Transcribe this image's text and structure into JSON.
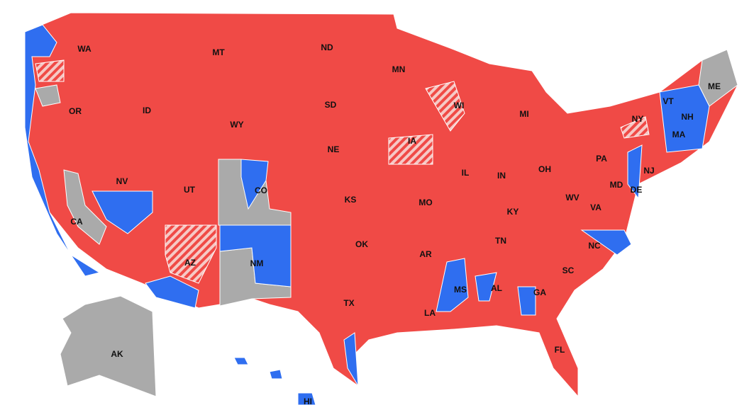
{
  "labels": [
    "WA",
    "MT",
    "ND",
    "MN",
    "OR",
    "ID",
    "SD",
    "WI",
    "MI",
    "WY",
    "NY",
    "VT",
    "NH",
    "ME",
    "MA",
    "IA",
    "NE",
    "PA",
    "NJ",
    "NV",
    "UT",
    "CO",
    "IL",
    "IN",
    "OH",
    "KS",
    "MO",
    "WV",
    "MD",
    "DE",
    "VA",
    "KY",
    "CA",
    "OK",
    "TN",
    "NC",
    "AR",
    "AZ",
    "NM",
    "SC",
    "MS",
    "AL",
    "GA",
    "TX",
    "LA",
    "FL",
    "AK",
    "HI"
  ]
}
